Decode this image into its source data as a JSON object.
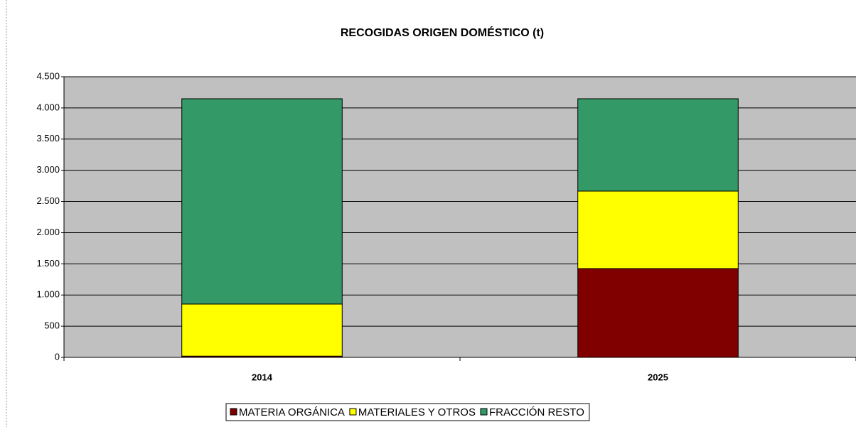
{
  "chart_data": {
    "type": "stacked_bar",
    "title": "RECOGIDAS ORIGEN DOMÉSTICO (t)",
    "categories": [
      "2014",
      "2025"
    ],
    "series": [
      {
        "name": "MATERIA ORGÁNICA",
        "color": "#800000",
        "values": [
          20,
          1424
        ]
      },
      {
        "name": "MATERIALES Y OTROS",
        "color": "#ffff00",
        "values": [
          835,
          1242
        ]
      },
      {
        "name": "FRACCIÓN RESTO",
        "color": "#339966",
        "values": [
          3292,
          1481
        ]
      }
    ],
    "ylim": [
      0,
      4500
    ],
    "yticks": [
      0,
      500,
      {
        "value": 1000,
        "label": "1.000"
      },
      {
        "value": 1500,
        "label": "1.500"
      },
      {
        "value": 2000,
        "label": "2.000"
      },
      {
        "value": 2500,
        "label": "2.500"
      },
      {
        "value": 3000,
        "label": "3.000"
      },
      {
        "value": 3500,
        "label": "3.500"
      },
      {
        "value": 4000,
        "label": "4.000"
      },
      {
        "value": 4500,
        "label": "4.500"
      }
    ],
    "grid": true,
    "legend": "bottom"
  }
}
